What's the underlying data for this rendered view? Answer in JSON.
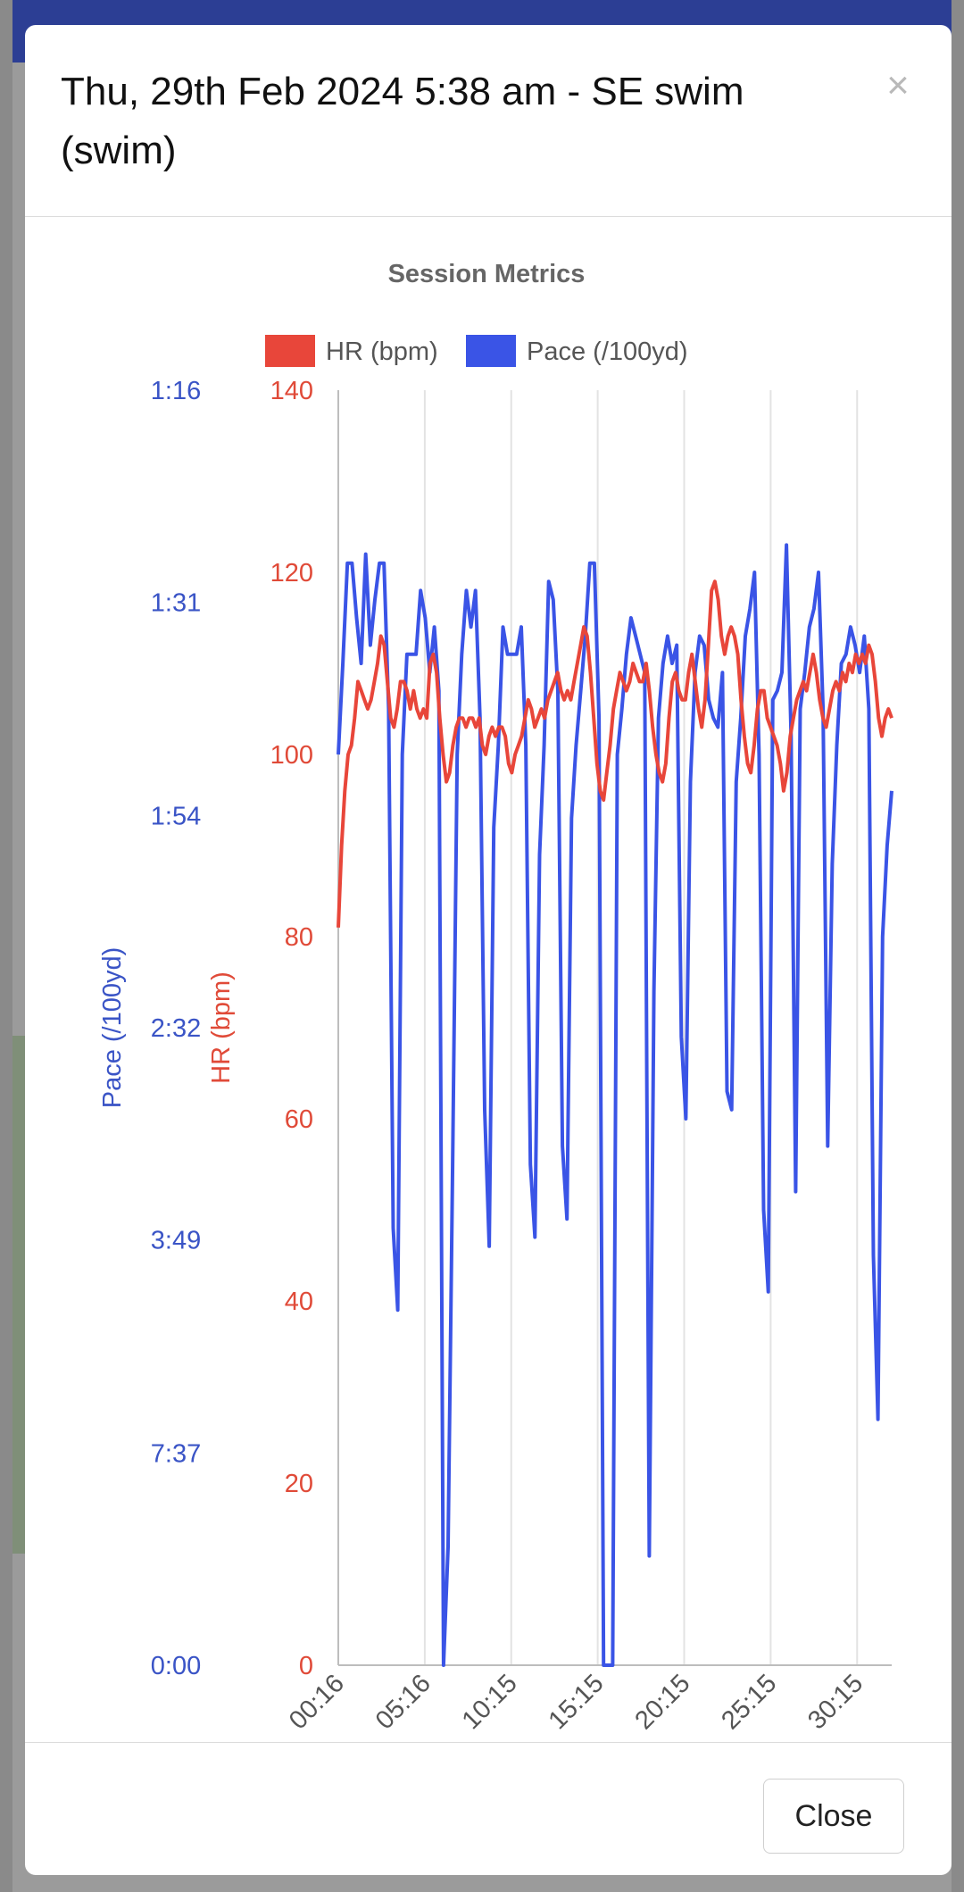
{
  "modal": {
    "title": "Thu, 29th Feb 2024 5:38 am - SE swim (swim)",
    "close_icon": "×",
    "close_button_label": "Close"
  },
  "chart_data": {
    "type": "line",
    "title": "Session Metrics",
    "legend_position": "top",
    "grid": true,
    "x_labels": [
      "00:16",
      "05:16",
      "10:15",
      "15:15",
      "20:15",
      "25:15",
      "30:15"
    ],
    "x_range_minutes": [
      0.27,
      32.27
    ],
    "y_left_outer": {
      "label": "Pace (/100yd)",
      "color": "#3a54d6",
      "ticks": [
        "1:16",
        "1:31",
        "1:54",
        "2:32",
        "3:49",
        "7:37",
        "0:00"
      ]
    },
    "y_left_inner": {
      "label": "HR (bpm)",
      "color": "#e04a38",
      "ticks": [
        140,
        120,
        100,
        80,
        60,
        40,
        20,
        0
      ],
      "range": [
        0,
        140
      ]
    },
    "series": [
      {
        "name": "HR (bpm)",
        "color": "#e8463a",
        "values": [
          81,
          90,
          96,
          100,
          101,
          104,
          108,
          107,
          106,
          105,
          106,
          108,
          110,
          113,
          112,
          108,
          104,
          103,
          105,
          108,
          108,
          107,
          105,
          107,
          105,
          104,
          105,
          104,
          110,
          111,
          109,
          104,
          100,
          97,
          98,
          101,
          103,
          104,
          104,
          103,
          104,
          104,
          103,
          104,
          101,
          100,
          102,
          103,
          102,
          103,
          103,
          102,
          99,
          98,
          100,
          101,
          102,
          104,
          106,
          105,
          103,
          104,
          105,
          104,
          106,
          107,
          108,
          109,
          107,
          106,
          107,
          106,
          108,
          110,
          112,
          114,
          113,
          109,
          104,
          99,
          96,
          95,
          98,
          101,
          105,
          107,
          109,
          108,
          107,
          108,
          110,
          109,
          108,
          108,
          110,
          107,
          103,
          100,
          98,
          97,
          99,
          104,
          108,
          109,
          107,
          106,
          106,
          109,
          111,
          108,
          105,
          103,
          106,
          112,
          118,
          119,
          117,
          113,
          111,
          113,
          114,
          113,
          111,
          106,
          102,
          99,
          98,
          101,
          105,
          107,
          107,
          104,
          103,
          102,
          101,
          99,
          96,
          98,
          102,
          104,
          106,
          107,
          108,
          107,
          109,
          111,
          109,
          106,
          104,
          103,
          105,
          107,
          108,
          107,
          109,
          108,
          110,
          109,
          111,
          110,
          111,
          110,
          112,
          111,
          108,
          104,
          102,
          104,
          105,
          104
        ]
      },
      {
        "name": "Pace (/100yd)",
        "color": "#3a54e6",
        "values": [
          100,
          110,
          121,
          121,
          115,
          110,
          122,
          112,
          117,
          121,
          121,
          105,
          48,
          39,
          100,
          111,
          111,
          111,
          118,
          115,
          109,
          114,
          107,
          0,
          13,
          55,
          100,
          111,
          118,
          114,
          118,
          104,
          61,
          46,
          92,
          101,
          114,
          111,
          111,
          111,
          114,
          101,
          55,
          47,
          89,
          101,
          119,
          117,
          107,
          57,
          49,
          93,
          101,
          107,
          113,
          121,
          121,
          104,
          0,
          0,
          0,
          100,
          105,
          111,
          115,
          113,
          111,
          109,
          12,
          74,
          104,
          110,
          113,
          110,
          112,
          69,
          60,
          97,
          109,
          113,
          112,
          106,
          104,
          103,
          109,
          63,
          61,
          97,
          104,
          113,
          116,
          120,
          100,
          50,
          41,
          106,
          107,
          109,
          123,
          102,
          52,
          105,
          109,
          114,
          116,
          120,
          105,
          57,
          88,
          101,
          110,
          111,
          114,
          112,
          109,
          113,
          105,
          45,
          27,
          80,
          90,
          96
        ]
      }
    ]
  }
}
